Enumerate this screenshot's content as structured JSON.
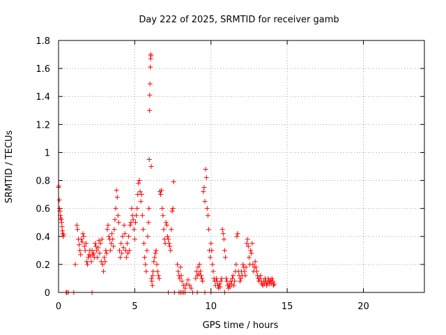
{
  "chart_data": {
    "type": "scatter",
    "title": "Day 222 of 2025, SRMTID for receiver gamb",
    "xlabel": "GPS time / hours",
    "ylabel": "SRMTID / TECUs",
    "xlim": [
      0,
      24
    ],
    "ylim": [
      0,
      1.8
    ],
    "x_ticks": [
      "0",
      "5",
      "10",
      "15",
      "20"
    ],
    "y_ticks": [
      "0",
      "0.2",
      "0.4",
      "0.6",
      "0.8",
      "1",
      "1.2",
      "1.4",
      "1.6",
      "1.8"
    ],
    "grid": true,
    "marker": "plus",
    "series": [
      {
        "color": "#ff0000",
        "points": [
          [
            0.0,
            0.75
          ],
          [
            0.02,
            0.76
          ],
          [
            0.05,
            0.66
          ],
          [
            0.07,
            0.6
          ],
          [
            0.1,
            0.58
          ],
          [
            0.12,
            0.55
          ],
          [
            0.15,
            0.53
          ],
          [
            0.18,
            0.52
          ],
          [
            0.2,
            0.5
          ],
          [
            0.23,
            0.47
          ],
          [
            0.25,
            0.44
          ],
          [
            0.28,
            0.42
          ],
          [
            0.3,
            0.4
          ],
          [
            0.33,
            0.41
          ],
          [
            0.5,
            0.0
          ],
          [
            0.55,
            0.0
          ],
          [
            0.65,
            0.0
          ],
          [
            1.0,
            0.0
          ],
          [
            2.2,
            0.0
          ],
          [
            1.1,
            0.2
          ],
          [
            1.2,
            0.48
          ],
          [
            1.25,
            0.45
          ],
          [
            1.3,
            0.38
          ],
          [
            1.35,
            0.34
          ],
          [
            1.4,
            0.3
          ],
          [
            1.45,
            0.27
          ],
          [
            1.5,
            0.38
          ],
          [
            1.55,
            0.36
          ],
          [
            1.6,
            0.42
          ],
          [
            1.65,
            0.4
          ],
          [
            1.7,
            0.33
          ],
          [
            1.75,
            0.3
          ],
          [
            1.8,
            0.35
          ],
          [
            1.85,
            0.22
          ],
          [
            1.9,
            0.2
          ],
          [
            1.95,
            0.25
          ],
          [
            2.0,
            0.27
          ],
          [
            2.05,
            0.3
          ],
          [
            2.1,
            0.26
          ],
          [
            2.15,
            0.22
          ],
          [
            2.2,
            0.3
          ],
          [
            2.25,
            0.27
          ],
          [
            2.3,
            0.28
          ],
          [
            2.35,
            0.25
          ],
          [
            2.4,
            0.35
          ],
          [
            2.45,
            0.33
          ],
          [
            2.5,
            0.3
          ],
          [
            2.55,
            0.25
          ],
          [
            2.6,
            0.32
          ],
          [
            2.65,
            0.37
          ],
          [
            2.7,
            0.28
          ],
          [
            2.75,
            0.35
          ],
          [
            2.8,
            0.22
          ],
          [
            2.85,
            0.38
          ],
          [
            2.9,
            0.2
          ],
          [
            2.95,
            0.15
          ],
          [
            3.0,
            0.25
          ],
          [
            3.05,
            0.22
          ],
          [
            3.1,
            0.3
          ],
          [
            3.15,
            0.28
          ],
          [
            3.2,
            0.45
          ],
          [
            3.25,
            0.48
          ],
          [
            3.3,
            0.4
          ],
          [
            3.35,
            0.38
          ],
          [
            3.4,
            0.3
          ],
          [
            3.45,
            0.35
          ],
          [
            3.5,
            0.42
          ],
          [
            3.55,
            0.38
          ],
          [
            3.6,
            0.33
          ],
          [
            3.65,
            0.45
          ],
          [
            3.7,
            0.52
          ],
          [
            3.75,
            0.6
          ],
          [
            3.8,
            0.73
          ],
          [
            3.85,
            0.68
          ],
          [
            3.9,
            0.55
          ],
          [
            3.95,
            0.5
          ],
          [
            4.0,
            0.3
          ],
          [
            4.05,
            0.25
          ],
          [
            4.1,
            0.35
          ],
          [
            4.15,
            0.28
          ],
          [
            4.2,
            0.4
          ],
          [
            4.25,
            0.32
          ],
          [
            4.3,
            0.48
          ],
          [
            4.35,
            0.42
          ],
          [
            4.4,
            0.3
          ],
          [
            4.45,
            0.25
          ],
          [
            4.5,
            0.35
          ],
          [
            4.55,
            0.28
          ],
          [
            4.6,
            0.4
          ],
          [
            4.65,
            0.3
          ],
          [
            4.7,
            0.48
          ],
          [
            4.75,
            0.5
          ],
          [
            4.8,
            0.6
          ],
          [
            4.85,
            0.55
          ],
          [
            4.9,
            0.52
          ],
          [
            4.95,
            0.45
          ],
          [
            5.0,
            0.38
          ],
          [
            5.05,
            0.5
          ],
          [
            5.1,
            0.55
          ],
          [
            5.15,
            0.6
          ],
          [
            5.2,
            0.7
          ],
          [
            5.25,
            0.78
          ],
          [
            5.3,
            0.8
          ],
          [
            5.35,
            0.72
          ],
          [
            5.4,
            0.65
          ],
          [
            5.45,
            0.7
          ],
          [
            5.5,
            0.55
          ],
          [
            5.55,
            0.45
          ],
          [
            5.6,
            0.35
          ],
          [
            5.65,
            0.25
          ],
          [
            5.7,
            0.2
          ],
          [
            5.75,
            0.15
          ],
          [
            5.8,
            0.3
          ],
          [
            5.85,
            0.4
          ],
          [
            5.9,
            0.5
          ],
          [
            5.93,
            0.6
          ],
          [
            5.95,
            0.95
          ],
          [
            5.97,
            1.3
          ],
          [
            5.98,
            1.41
          ],
          [
            6.0,
            1.49
          ],
          [
            6.02,
            1.61
          ],
          [
            6.04,
            1.67
          ],
          [
            6.05,
            1.7
          ],
          [
            6.06,
            1.69
          ],
          [
            6.08,
            0.9
          ],
          [
            6.1,
            0.1
          ],
          [
            6.12,
            0.08
          ],
          [
            6.15,
            0.05
          ],
          [
            6.18,
            0.12
          ],
          [
            6.2,
            0.15
          ],
          [
            6.25,
            0.22
          ],
          [
            6.3,
            0.25
          ],
          [
            6.35,
            0.28
          ],
          [
            6.4,
            0.3
          ],
          [
            6.45,
            0.2
          ],
          [
            6.5,
            0.15
          ],
          [
            6.55,
            0.12
          ],
          [
            6.6,
            0.1
          ],
          [
            6.65,
            0.72
          ],
          [
            6.7,
            0.7
          ],
          [
            6.75,
            0.73
          ],
          [
            6.8,
            0.6
          ],
          [
            6.85,
            0.55
          ],
          [
            6.9,
            0.45
          ],
          [
            6.95,
            0.38
          ],
          [
            7.0,
            0.35
          ],
          [
            7.05,
            0.5
          ],
          [
            7.1,
            0.48
          ],
          [
            7.15,
            0.4
          ],
          [
            7.2,
            0.38
          ],
          [
            7.25,
            0.35
          ],
          [
            7.3,
            0.33
          ],
          [
            7.35,
            0.3
          ],
          [
            7.4,
            0.45
          ],
          [
            7.45,
            0.58
          ],
          [
            7.5,
            0.6
          ],
          [
            7.55,
            0.79
          ],
          [
            7.6,
            0.0
          ],
          [
            7.2,
            0.0
          ],
          [
            7.9,
            0.0
          ],
          [
            8.0,
            0.0
          ],
          [
            8.1,
            0.0
          ],
          [
            8.2,
            0.0
          ],
          [
            8.3,
            0.0
          ],
          [
            8.8,
            0.0
          ],
          [
            9.1,
            0.0
          ],
          [
            9.6,
            0.0
          ],
          [
            10.0,
            0.0
          ],
          [
            10.9,
            0.0
          ],
          [
            7.8,
            0.2
          ],
          [
            7.85,
            0.15
          ],
          [
            7.9,
            0.12
          ],
          [
            7.95,
            0.1
          ],
          [
            8.0,
            0.18
          ],
          [
            8.05,
            0.12
          ],
          [
            8.1,
            0.08
          ],
          [
            8.2,
            0.05
          ],
          [
            8.3,
            0.03
          ],
          [
            8.4,
            0.06
          ],
          [
            8.5,
            0.09
          ],
          [
            8.6,
            0.05
          ],
          [
            8.7,
            0.03
          ],
          [
            9.0,
            0.1
          ],
          [
            9.05,
            0.15
          ],
          [
            9.1,
            0.12
          ],
          [
            9.15,
            0.18
          ],
          [
            9.2,
            0.13
          ],
          [
            9.25,
            0.2
          ],
          [
            9.3,
            0.15
          ],
          [
            9.35,
            0.12
          ],
          [
            9.4,
            0.1
          ],
          [
            9.45,
            0.08
          ],
          [
            9.5,
            0.72
          ],
          [
            9.55,
            0.75
          ],
          [
            9.6,
            0.65
          ],
          [
            9.65,
            0.88
          ],
          [
            9.7,
            0.82
          ],
          [
            9.75,
            0.6
          ],
          [
            9.8,
            0.55
          ],
          [
            9.85,
            0.45
          ],
          [
            9.9,
            0.3
          ],
          [
            9.95,
            0.25
          ],
          [
            10.0,
            0.35
          ],
          [
            10.05,
            0.3
          ],
          [
            10.1,
            0.2
          ],
          [
            10.15,
            0.15
          ],
          [
            10.2,
            0.1
          ],
          [
            10.25,
            0.08
          ],
          [
            10.3,
            0.05
          ],
          [
            10.35,
            0.1
          ],
          [
            10.4,
            0.08
          ],
          [
            10.45,
            0.05
          ],
          [
            10.5,
            0.03
          ],
          [
            10.55,
            0.06
          ],
          [
            10.6,
            0.04
          ],
          [
            10.65,
            0.08
          ],
          [
            10.7,
            0.1
          ],
          [
            10.75,
            0.45
          ],
          [
            10.8,
            0.42
          ],
          [
            10.85,
            0.38
          ],
          [
            10.9,
            0.3
          ],
          [
            10.95,
            0.25
          ],
          [
            11.0,
            0.1
          ],
          [
            11.05,
            0.08
          ],
          [
            11.1,
            0.05
          ],
          [
            11.15,
            0.03
          ],
          [
            11.2,
            0.06
          ],
          [
            11.25,
            0.04
          ],
          [
            11.3,
            0.08
          ],
          [
            11.35,
            0.06
          ],
          [
            11.4,
            0.1
          ],
          [
            11.45,
            0.12
          ],
          [
            11.5,
            0.05
          ],
          [
            11.55,
            0.08
          ],
          [
            11.6,
            0.15
          ],
          [
            11.65,
            0.2
          ],
          [
            11.7,
            0.4
          ],
          [
            11.75,
            0.42
          ],
          [
            11.8,
            0.15
          ],
          [
            11.85,
            0.12
          ],
          [
            11.9,
            0.08
          ],
          [
            11.95,
            0.1
          ],
          [
            12.0,
            0.15
          ],
          [
            12.05,
            0.12
          ],
          [
            12.1,
            0.2
          ],
          [
            12.15,
            0.18
          ],
          [
            12.2,
            0.15
          ],
          [
            12.25,
            0.12
          ],
          [
            12.3,
            0.18
          ],
          [
            12.35,
            0.35
          ],
          [
            12.4,
            0.38
          ],
          [
            12.45,
            0.33
          ],
          [
            12.5,
            0.25
          ],
          [
            12.55,
            0.2
          ],
          [
            12.6,
            0.3
          ],
          [
            12.65,
            0.28
          ],
          [
            12.7,
            0.35
          ],
          [
            12.75,
            0.2
          ],
          [
            12.8,
            0.15
          ],
          [
            12.85,
            0.18
          ],
          [
            12.9,
            0.22
          ],
          [
            12.95,
            0.18
          ],
          [
            13.0,
            0.15
          ],
          [
            13.05,
            0.12
          ],
          [
            13.1,
            0.1
          ],
          [
            13.15,
            0.08
          ],
          [
            13.2,
            0.1
          ],
          [
            13.25,
            0.12
          ],
          [
            13.3,
            0.08
          ],
          [
            13.35,
            0.06
          ],
          [
            13.4,
            0.05
          ],
          [
            13.45,
            0.08
          ],
          [
            13.5,
            0.06
          ],
          [
            13.55,
            0.1
          ],
          [
            13.6,
            0.08
          ],
          [
            13.65,
            0.05
          ],
          [
            13.7,
            0.07
          ],
          [
            13.75,
            0.1
          ],
          [
            13.8,
            0.08
          ],
          [
            13.85,
            0.06
          ],
          [
            13.9,
            0.09
          ],
          [
            13.95,
            0.07
          ],
          [
            14.0,
            0.1
          ],
          [
            14.05,
            0.08
          ],
          [
            14.1,
            0.05
          ],
          [
            14.15,
            0.06
          ]
        ]
      }
    ]
  }
}
